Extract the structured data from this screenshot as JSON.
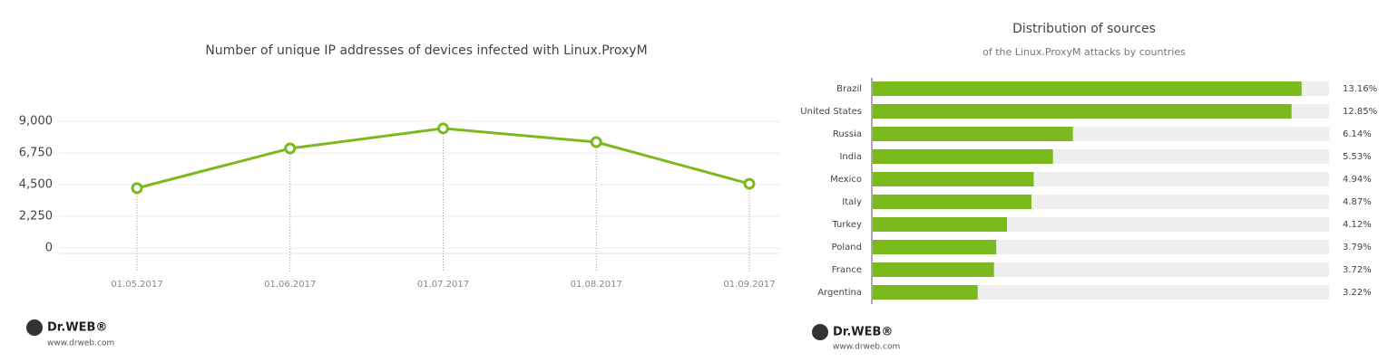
{
  "chart_data": [
    {
      "type": "line",
      "title": "Number of unique IP addresses of devices infected with Linux.ProxyM",
      "categories": [
        "01.05.2017",
        "01.06.2017",
        "01.07.2017",
        "01.08.2017",
        "01.09.2017"
      ],
      "series": [
        {
          "name": "Unique IP addresses",
          "color": "#7aba1e",
          "values": [
            4250,
            7070,
            8490,
            7520,
            4560
          ]
        }
      ],
      "ylim": [
        0,
        9000
      ],
      "yticks": [
        0,
        {
          "value": 2250,
          "label": "2,250"
        },
        {
          "value": 4500,
          "label": "4,500"
        },
        {
          "value": 6750,
          "label": "6,750"
        },
        {
          "value": 9000,
          "label": "9,000"
        }
      ],
      "grid": true
    },
    {
      "type": "hbar",
      "title": "Distribution of sources",
      "subtitle": "of the Linux.ProxyM attacks by countries",
      "categories": [
        "Brazil",
        "United States",
        "Russia",
        "India",
        "Mexico",
        "Italy",
        "Turkey",
        "Poland",
        "France",
        "Argentina"
      ],
      "values": [
        13.16,
        12.85,
        6.14,
        5.53,
        4.94,
        4.87,
        4.12,
        3.79,
        3.72,
        3.22
      ],
      "value_labels": [
        "13.16%",
        "12.85%",
        "6.14%",
        "5.53%",
        "4.94%",
        "4.87%",
        "4.12%",
        "3.79%",
        "3.72%",
        "3.22%"
      ],
      "color": "#7aba1e",
      "xlim": [
        0,
        14
      ]
    }
  ],
  "footer": {
    "logo": "Dr.WEB®",
    "url": "www.drweb.com"
  }
}
